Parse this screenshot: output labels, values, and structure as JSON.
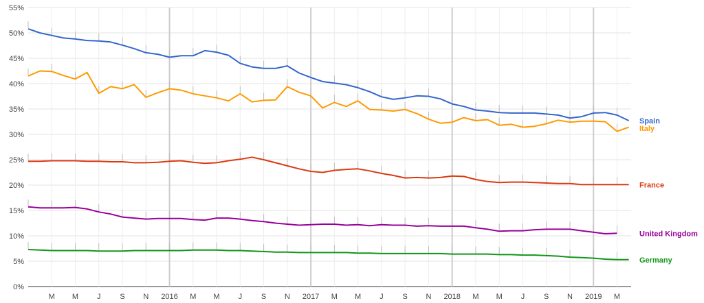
{
  "chart_data": {
    "type": "line",
    "title": "",
    "xlabel": "",
    "ylabel": "",
    "ylim": [
      0,
      55
    ],
    "grid": true,
    "legend": "right-end-labels",
    "y_ticks": [
      "0%",
      "5%",
      "10%",
      "15%",
      "20%",
      "25%",
      "30%",
      "35%",
      "40%",
      "45%",
      "50%",
      "55%"
    ],
    "x_start": "2015-01",
    "x_ticks": [
      {
        "m": 2,
        "label": "M"
      },
      {
        "m": 4,
        "label": "M"
      },
      {
        "m": 6,
        "label": "J"
      },
      {
        "m": 8,
        "label": "S"
      },
      {
        "m": 10,
        "label": "N"
      },
      {
        "m": 12,
        "label": "2016"
      },
      {
        "m": 14,
        "label": "M"
      },
      {
        "m": 16,
        "label": "M"
      },
      {
        "m": 18,
        "label": "J"
      },
      {
        "m": 20,
        "label": "S"
      },
      {
        "m": 22,
        "label": "N"
      },
      {
        "m": 24,
        "label": "2017"
      },
      {
        "m": 26,
        "label": "M"
      },
      {
        "m": 28,
        "label": "M"
      },
      {
        "m": 30,
        "label": "J"
      },
      {
        "m": 32,
        "label": "S"
      },
      {
        "m": 34,
        "label": "N"
      },
      {
        "m": 36,
        "label": "2018"
      },
      {
        "m": 38,
        "label": "M"
      },
      {
        "m": 40,
        "label": "M"
      },
      {
        "m": 42,
        "label": "J"
      },
      {
        "m": 44,
        "label": "S"
      },
      {
        "m": 46,
        "label": "N"
      },
      {
        "m": 48,
        "label": "2019"
      },
      {
        "m": 50,
        "label": "M"
      }
    ],
    "series": [
      {
        "name": "Spain",
        "color": "#3366cc",
        "values": [
          50.8,
          50.0,
          49.5,
          49.0,
          48.8,
          48.5,
          48.4,
          48.2,
          47.6,
          46.9,
          46.1,
          45.8,
          45.2,
          45.5,
          45.5,
          46.5,
          46.2,
          45.6,
          44.0,
          43.3,
          43.0,
          43.0,
          43.5,
          42.1,
          41.2,
          40.4,
          40.1,
          39.8,
          39.2,
          38.4,
          37.4,
          36.9,
          37.2,
          37.6,
          37.5,
          37.0,
          36.0,
          35.5,
          34.8,
          34.6,
          34.3,
          34.2,
          34.2,
          34.2,
          34.0,
          33.8,
          33.2,
          33.5,
          34.2,
          34.3,
          33.8,
          32.7
        ]
      },
      {
        "name": "Italy",
        "color": "#ff9900",
        "values": [
          41.5,
          42.5,
          42.4,
          41.6,
          40.9,
          42.2,
          38.1,
          39.4,
          39.0,
          39.8,
          37.3,
          38.2,
          39.0,
          38.7,
          38.0,
          37.6,
          37.2,
          36.6,
          38.0,
          36.4,
          36.7,
          36.8,
          39.4,
          38.3,
          37.6,
          35.2,
          36.3,
          35.5,
          36.6,
          34.9,
          34.8,
          34.6,
          34.9,
          34.1,
          33.0,
          32.2,
          32.4,
          33.3,
          32.7,
          32.9,
          31.8,
          32.0,
          31.4,
          31.6,
          32.1,
          32.8,
          32.4,
          32.6,
          32.6,
          32.5,
          30.6,
          31.4
        ]
      },
      {
        "name": "France",
        "color": "#dc3912",
        "values": [
          24.7,
          24.7,
          24.8,
          24.8,
          24.8,
          24.7,
          24.7,
          24.6,
          24.6,
          24.4,
          24.4,
          24.5,
          24.7,
          24.8,
          24.5,
          24.3,
          24.4,
          24.8,
          25.1,
          25.5,
          25.0,
          24.4,
          23.8,
          23.2,
          22.7,
          22.5,
          22.9,
          23.1,
          23.2,
          22.8,
          22.3,
          21.9,
          21.4,
          21.5,
          21.4,
          21.5,
          21.8,
          21.7,
          21.1,
          20.7,
          20.5,
          20.6,
          20.6,
          20.5,
          20.4,
          20.3,
          20.3,
          20.1,
          20.1,
          20.1,
          20.1,
          20.1
        ]
      },
      {
        "name": "United Kingdom",
        "color": "#990099",
        "values": [
          15.7,
          15.5,
          15.5,
          15.5,
          15.6,
          15.3,
          14.7,
          14.3,
          13.7,
          13.5,
          13.3,
          13.4,
          13.4,
          13.4,
          13.2,
          13.1,
          13.5,
          13.5,
          13.3,
          13.0,
          12.8,
          12.5,
          12.3,
          12.1,
          12.2,
          12.3,
          12.3,
          12.1,
          12.2,
          12.0,
          12.2,
          12.1,
          12.1,
          11.9,
          12.0,
          11.9,
          11.9,
          11.9,
          11.6,
          11.3,
          10.9,
          11.0,
          11.0,
          11.2,
          11.3,
          11.3,
          11.3,
          11.0,
          10.7,
          10.4,
          10.5
        ]
      },
      {
        "name": "Germany",
        "color": "#109618",
        "values": [
          7.3,
          7.2,
          7.1,
          7.1,
          7.1,
          7.1,
          7.0,
          7.0,
          7.0,
          7.1,
          7.1,
          7.1,
          7.1,
          7.1,
          7.2,
          7.2,
          7.2,
          7.1,
          7.1,
          7.0,
          6.9,
          6.8,
          6.8,
          6.7,
          6.7,
          6.7,
          6.7,
          6.7,
          6.6,
          6.6,
          6.5,
          6.5,
          6.5,
          6.5,
          6.5,
          6.5,
          6.4,
          6.4,
          6.4,
          6.4,
          6.3,
          6.3,
          6.2,
          6.2,
          6.1,
          6.0,
          5.8,
          5.7,
          5.6,
          5.4,
          5.3,
          5.3
        ]
      }
    ]
  }
}
